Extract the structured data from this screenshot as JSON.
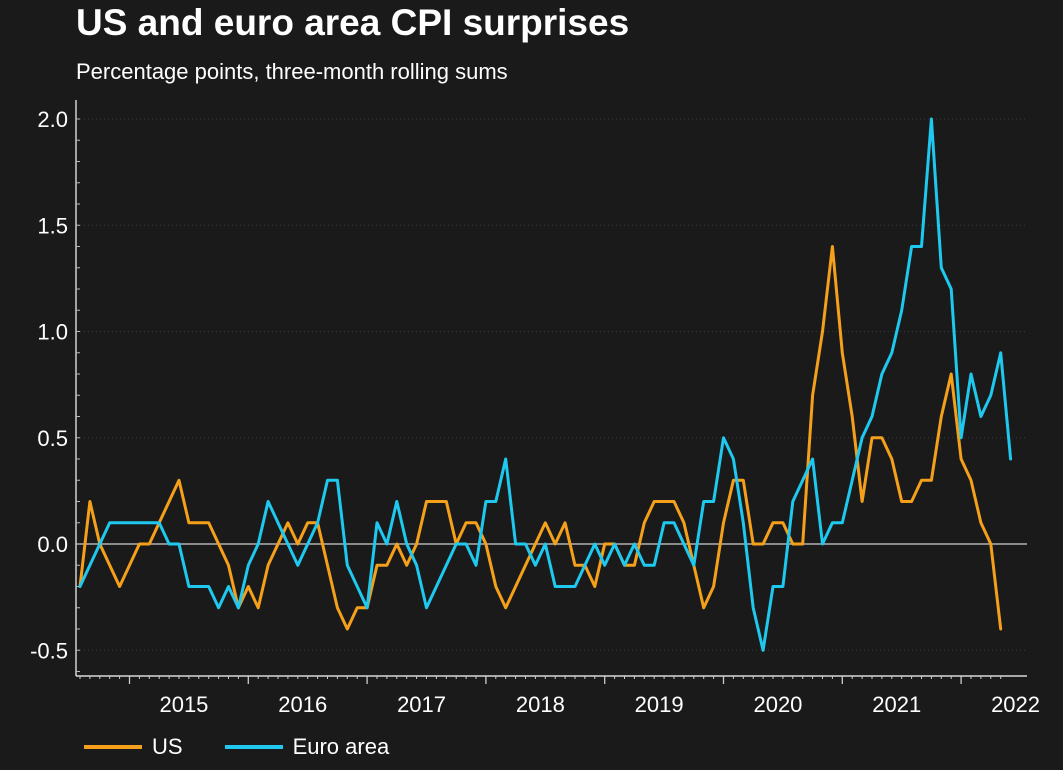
{
  "chart_data": {
    "type": "line",
    "title": "US and euro area CPI surprises",
    "subtitle": "Percentage points, three-month rolling sums",
    "xlabel": "",
    "ylabel": "",
    "ylim": [
      -0.6,
      2.1
    ],
    "yticks": [
      "2.0",
      "1.5",
      "1.0",
      "0.5",
      "0.0",
      "-0.5"
    ],
    "ytick_values": [
      2.0,
      1.5,
      1.0,
      0.5,
      0.0,
      -0.5
    ],
    "year_labels": [
      "2015",
      "2016",
      "2017",
      "2018",
      "2019",
      "2020",
      "2021",
      "2022"
    ],
    "x_start": "2014-08",
    "legend_position": "bottom-left",
    "series": [
      {
        "name": "US",
        "color": "#f5a01a",
        "values": [
          -0.2,
          0.2,
          0.0,
          -0.1,
          -0.2,
          -0.1,
          0.0,
          0.0,
          0.1,
          0.2,
          0.3,
          0.1,
          0.1,
          0.1,
          0.0,
          -0.1,
          -0.3,
          -0.2,
          -0.3,
          -0.1,
          0.0,
          0.1,
          0.0,
          0.1,
          0.1,
          -0.1,
          -0.3,
          -0.4,
          -0.3,
          -0.3,
          -0.1,
          -0.1,
          0.0,
          -0.1,
          0.0,
          0.2,
          0.2,
          0.2,
          0.0,
          0.1,
          0.1,
          0.0,
          -0.2,
          -0.3,
          -0.2,
          -0.1,
          0.0,
          0.1,
          0.0,
          0.1,
          -0.1,
          -0.1,
          -0.2,
          0.0,
          0.0,
          -0.1,
          -0.1,
          0.1,
          0.2,
          0.2,
          0.2,
          0.1,
          -0.1,
          -0.3,
          -0.2,
          0.1,
          0.3,
          0.3,
          0.0,
          0.0,
          0.1,
          0.1,
          0.0,
          0.0,
          0.7,
          1.0,
          1.4,
          0.9,
          0.6,
          0.2,
          0.5,
          0.5,
          0.4,
          0.2,
          0.2,
          0.3,
          0.3,
          0.6,
          0.8,
          0.4,
          0.3,
          0.1,
          0.0,
          -0.4
        ]
      },
      {
        "name": "Euro area",
        "color": "#1fc8ef",
        "values": [
          -0.2,
          -0.1,
          0.0,
          0.1,
          0.1,
          0.1,
          0.1,
          0.1,
          0.1,
          0.0,
          0.0,
          -0.2,
          -0.2,
          -0.2,
          -0.3,
          -0.2,
          -0.3,
          -0.1,
          0.0,
          0.2,
          0.1,
          0.0,
          -0.1,
          0.0,
          0.1,
          0.3,
          0.3,
          -0.1,
          -0.2,
          -0.3,
          0.1,
          0.0,
          0.2,
          0.0,
          -0.1,
          -0.3,
          -0.2,
          -0.1,
          0.0,
          0.0,
          -0.1,
          0.2,
          0.2,
          0.4,
          0.0,
          0.0,
          -0.1,
          0.0,
          -0.2,
          -0.2,
          -0.2,
          -0.1,
          0.0,
          -0.1,
          0.0,
          -0.1,
          0.0,
          -0.1,
          -0.1,
          0.1,
          0.1,
          0.0,
          -0.1,
          0.2,
          0.2,
          0.5,
          0.4,
          0.1,
          -0.3,
          -0.5,
          -0.2,
          -0.2,
          0.2,
          0.3,
          0.4,
          0.0,
          0.1,
          0.1,
          0.3,
          0.5,
          0.6,
          0.8,
          0.9,
          1.1,
          1.4,
          1.4,
          2.0,
          1.3,
          1.2,
          0.5,
          0.8,
          0.6,
          0.7,
          0.9,
          0.4
        ]
      }
    ],
    "grid": true
  }
}
